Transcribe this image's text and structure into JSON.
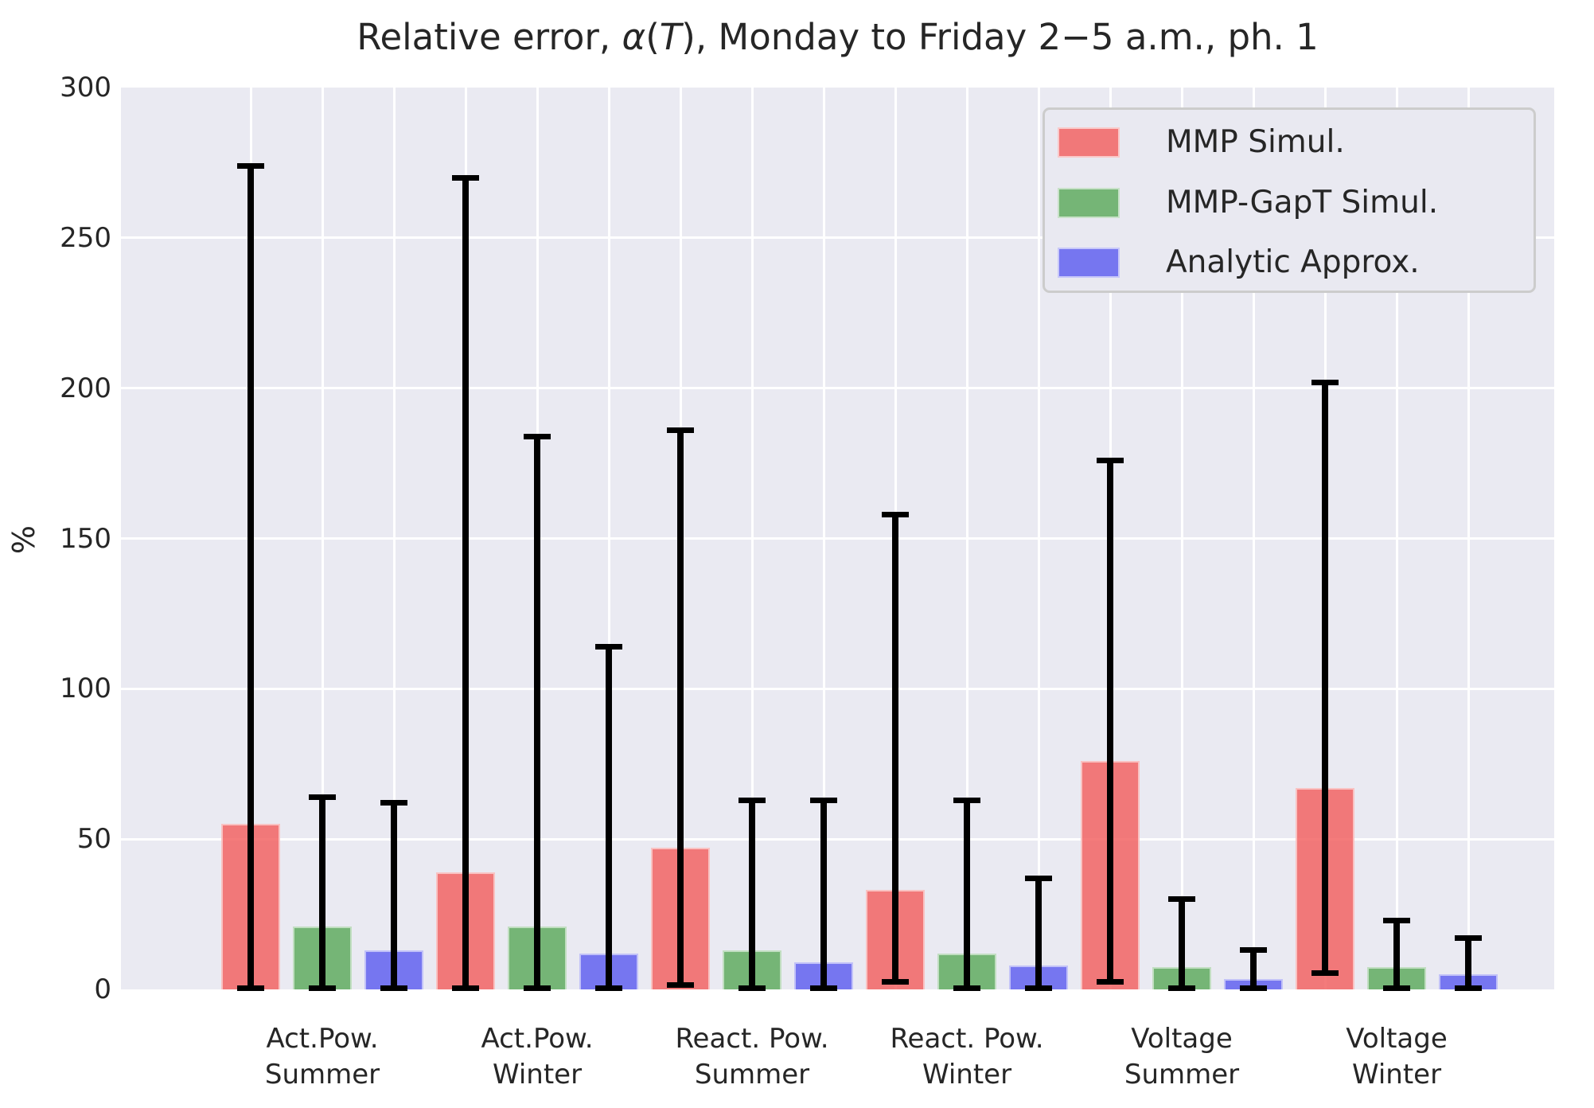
{
  "figure": {
    "title": {
      "pre": "Relative error, ",
      "alpha": "α",
      "lparen": "(",
      "tvar": "T",
      "post": "), Monday to Friday 2−5 a.m., ph. 1"
    },
    "background_color": "#FFFFFF",
    "plot_background_color": "#EAEAF2",
    "grid_color": "#FFFFFF",
    "text_color": "#262626",
    "errorbar_color": "#000000",
    "legend_border_color": "#CCCCCC"
  },
  "chart_data": {
    "type": "bar",
    "title": "Relative error, α(T), Monday to Friday 2−5 a.m., ph. 1",
    "xlabel": "",
    "ylabel": "%",
    "ylim": [
      0,
      300
    ],
    "yticks": [
      0,
      50,
      100,
      150,
      200,
      250,
      300
    ],
    "grid": true,
    "legend_position": "upper right",
    "bar_alpha": 0.85,
    "error_bars": "asymmetric min-max, black, capped",
    "categories": [
      "Act.Pow.\nSummer",
      "Act.Pow.\nWinter",
      "React. Pow.\nSummer",
      "React. Pow.\nWinter",
      "Voltage\nSummer",
      "Voltage\nWinter"
    ],
    "series": [
      {
        "name": "MMP Simul.",
        "color": "#F26464",
        "values": [
          55,
          39,
          47,
          33,
          76,
          67
        ],
        "err_low": [
          0,
          0,
          1,
          2,
          2,
          5
        ],
        "err_high": [
          274,
          270,
          186,
          158,
          176,
          202
        ]
      },
      {
        "name": "MMP-GapT Simul.",
        "color": "#60AC60",
        "values": [
          21,
          21,
          13,
          12,
          7.5,
          7.5
        ],
        "err_low": [
          0,
          0,
          0,
          0,
          0,
          0
        ],
        "err_high": [
          64,
          184,
          63,
          63,
          30,
          23
        ]
      },
      {
        "name": "Analytic Approx.",
        "color": "#6262F0",
        "values": [
          13,
          12,
          9,
          8,
          3.5,
          5
        ],
        "err_low": [
          0,
          0,
          0,
          0,
          0,
          0
        ],
        "err_high": [
          62,
          114,
          63,
          37,
          13,
          17
        ]
      }
    ]
  }
}
